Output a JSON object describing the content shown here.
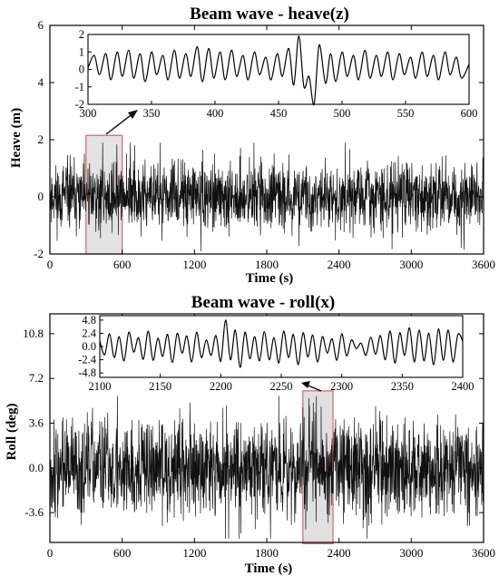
{
  "chart_data": [
    {
      "type": "line",
      "title": "Beam wave - heave(z)",
      "xlabel": "Time (s)",
      "ylabel": "Heave (m)",
      "xlim": [
        0,
        3600
      ],
      "ylim": [
        -2,
        6
      ],
      "xticks": [
        0,
        600,
        1200,
        1800,
        2400,
        3000,
        3600
      ],
      "yticks": [
        -2,
        0,
        2,
        4,
        6
      ],
      "signal": {
        "mean": 0.0,
        "typical_amplitude": 0.9,
        "peak_min": -1.9,
        "peak_max": 1.9
      },
      "highlight": {
        "x_range": [
          300,
          600
        ],
        "y_range": [
          -2,
          2.15
        ]
      },
      "inset": {
        "type": "line",
        "xlim": [
          300,
          600
        ],
        "ylim": [
          -2,
          2
        ],
        "xticks": [
          300,
          350,
          400,
          450,
          500,
          550,
          600
        ],
        "yticks": [
          -2,
          -1,
          0,
          1,
          2
        ],
        "points": [
          [
            300,
            0.1
          ],
          [
            305,
            0.8
          ],
          [
            309,
            -0.3
          ],
          [
            314,
            0.9
          ],
          [
            318,
            -0.6
          ],
          [
            323,
            1.0
          ],
          [
            327,
            -0.4
          ],
          [
            332,
            1.1
          ],
          [
            336,
            -0.5
          ],
          [
            341,
            0.9
          ],
          [
            345,
            -0.7
          ],
          [
            350,
            1.0
          ],
          [
            354,
            -0.3
          ],
          [
            359,
            0.8
          ],
          [
            363,
            -0.6
          ],
          [
            368,
            1.1
          ],
          [
            372,
            -0.5
          ],
          [
            377,
            0.9
          ],
          [
            381,
            -0.4
          ],
          [
            386,
            1.3
          ],
          [
            390,
            -0.7
          ],
          [
            395,
            1.2
          ],
          [
            399,
            -0.5
          ],
          [
            404,
            1.0
          ],
          [
            408,
            -0.6
          ],
          [
            413,
            1.1
          ],
          [
            417,
            -0.4
          ],
          [
            422,
            0.8
          ],
          [
            426,
            -0.6
          ],
          [
            431,
            1.0
          ],
          [
            435,
            -0.3
          ],
          [
            440,
            0.7
          ],
          [
            444,
            -0.6
          ],
          [
            449,
            0.9
          ],
          [
            453,
            -0.4
          ],
          [
            458,
            1.2
          ],
          [
            462,
            -0.9
          ],
          [
            466,
            1.9
          ],
          [
            470,
            -1.0
          ],
          [
            474,
            -0.4
          ],
          [
            478,
            -2.0
          ],
          [
            482,
            1.4
          ],
          [
            487,
            -0.8
          ],
          [
            491,
            0.9
          ],
          [
            495,
            -0.7
          ],
          [
            500,
            1.0
          ],
          [
            504,
            -0.4
          ],
          [
            509,
            0.8
          ],
          [
            513,
            -0.6
          ],
          [
            518,
            1.1
          ],
          [
            522,
            -0.5
          ],
          [
            527,
            0.8
          ],
          [
            531,
            -0.4
          ],
          [
            536,
            1.0
          ],
          [
            540,
            -0.6
          ],
          [
            545,
            0.9
          ],
          [
            549,
            -0.3
          ],
          [
            554,
            0.7
          ],
          [
            558,
            -0.5
          ],
          [
            563,
            1.0
          ],
          [
            567,
            -0.4
          ],
          [
            572,
            0.8
          ],
          [
            576,
            -0.6
          ],
          [
            581,
            1.0
          ],
          [
            585,
            -0.3
          ],
          [
            590,
            0.7
          ],
          [
            594,
            -0.5
          ],
          [
            600,
            0.3
          ]
        ]
      }
    },
    {
      "type": "line",
      "title": "Beam wave - roll(x)",
      "xlabel": "Time (s)",
      "ylabel": "Roll (deg)",
      "xlim": [
        0,
        3600
      ],
      "ylim": [
        -6,
        12.4
      ],
      "xticks": [
        0,
        600,
        1200,
        1800,
        2400,
        3000,
        3600
      ],
      "yticks": [
        -3.6,
        0.0,
        3.6,
        7.2,
        10.8
      ],
      "signal": {
        "mean": 0.0,
        "typical_amplitude": 3.0,
        "peak_min": -5.7,
        "peak_max": 5.8
      },
      "highlight": {
        "x_range": [
          2100,
          2350
        ],
        "y_range": [
          -6.1,
          6.2
        ]
      },
      "inset": {
        "type": "line",
        "xlim": [
          2100,
          2400
        ],
        "ylim": [
          -5.6,
          5.6
        ],
        "xticks": [
          2100,
          2150,
          2200,
          2250,
          2300,
          2350,
          2400
        ],
        "yticks": [
          -4.8,
          -2.4,
          0.0,
          2.4,
          4.8
        ],
        "points": [
          [
            2100,
            1.0
          ],
          [
            2104,
            -1.5
          ],
          [
            2108,
            2.3
          ],
          [
            2112,
            -2.0
          ],
          [
            2116,
            1.8
          ],
          [
            2120,
            -2.6
          ],
          [
            2124,
            2.6
          ],
          [
            2128,
            -1.0
          ],
          [
            2132,
            1.6
          ],
          [
            2136,
            -2.3
          ],
          [
            2140,
            2.8
          ],
          [
            2144,
            -2.5
          ],
          [
            2148,
            1.5
          ],
          [
            2152,
            -1.8
          ],
          [
            2156,
            2.2
          ],
          [
            2160,
            -2.9
          ],
          [
            2164,
            2.4
          ],
          [
            2168,
            -1.2
          ],
          [
            2172,
            1.9
          ],
          [
            2176,
            -2.8
          ],
          [
            2180,
            2.6
          ],
          [
            2184,
            -2.0
          ],
          [
            2188,
            1.2
          ],
          [
            2192,
            -1.6
          ],
          [
            2196,
            2.0
          ],
          [
            2200,
            -2.7
          ],
          [
            2204,
            4.8
          ],
          [
            2208,
            -2.4
          ],
          [
            2212,
            3.0
          ],
          [
            2216,
            -3.8
          ],
          [
            2220,
            2.6
          ],
          [
            2224,
            -2.2
          ],
          [
            2228,
            1.8
          ],
          [
            2232,
            -2.6
          ],
          [
            2236,
            2.7
          ],
          [
            2240,
            -2.4
          ],
          [
            2244,
            1.6
          ],
          [
            2248,
            -3.0
          ],
          [
            2252,
            2.8
          ],
          [
            2256,
            -2.0
          ],
          [
            2260,
            2.2
          ],
          [
            2264,
            -3.3
          ],
          [
            2268,
            2.5
          ],
          [
            2272,
            -1.9
          ],
          [
            2276,
            2.1
          ],
          [
            2280,
            -2.8
          ],
          [
            2284,
            1.8
          ],
          [
            2288,
            -1.2
          ],
          [
            2292,
            1.4
          ],
          [
            2296,
            -2.5
          ],
          [
            2300,
            2.3
          ],
          [
            2304,
            -1.7
          ],
          [
            2308,
            1.2
          ],
          [
            2312,
            -0.4
          ],
          [
            2316,
            0.6
          ],
          [
            2320,
            -1.6
          ],
          [
            2324,
            1.7
          ],
          [
            2328,
            -1.4
          ],
          [
            2332,
            2.0
          ],
          [
            2336,
            -2.4
          ],
          [
            2340,
            2.8
          ],
          [
            2344,
            -3.0
          ],
          [
            2348,
            2.5
          ],
          [
            2352,
            -1.6
          ],
          [
            2356,
            3.4
          ],
          [
            2360,
            -2.8
          ],
          [
            2364,
            3.0
          ],
          [
            2368,
            -2.6
          ],
          [
            2372,
            2.4
          ],
          [
            2376,
            -3.3
          ],
          [
            2380,
            3.2
          ],
          [
            2384,
            -2.5
          ],
          [
            2388,
            3.0
          ],
          [
            2392,
            -2.8
          ],
          [
            2396,
            2.2
          ],
          [
            2400,
            1.0
          ]
        ]
      }
    }
  ]
}
